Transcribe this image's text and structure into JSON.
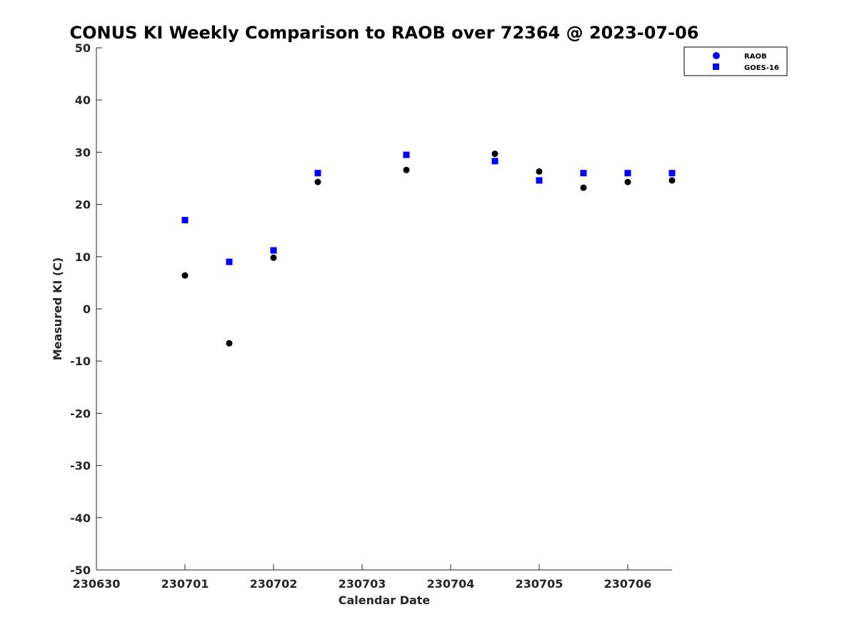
{
  "chart_data": {
    "type": "scatter",
    "title": "CONUS KI Weekly Comparison to RAOB over 72364 @ 2023-07-06",
    "xlabel": "Calendar Date",
    "ylabel": "Measured KI (C)",
    "xlim": [
      0,
      6.5
    ],
    "ylim": [
      -50,
      50
    ],
    "x_ticks": [
      0,
      1,
      2,
      3,
      4,
      5,
      6
    ],
    "x_tick_labels": [
      "230630",
      "230701",
      "230702",
      "230703",
      "230704",
      "230705",
      "230706"
    ],
    "y_ticks": [
      -50,
      -40,
      -30,
      -20,
      -10,
      0,
      10,
      20,
      30,
      40,
      50
    ],
    "y_tick_labels": [
      "-50",
      "-40",
      "-30",
      "-20",
      "-10",
      "0",
      "10",
      "20",
      "30",
      "40",
      "50"
    ],
    "legend_position": "top-right",
    "series": [
      {
        "name": "RAOB",
        "marker": "circle",
        "color": "#000000",
        "x": [
          1,
          1.5,
          2,
          2.5,
          3.5,
          4.5,
          5,
          5.5,
          6,
          6.5
        ],
        "y": [
          6.4,
          -6.6,
          9.8,
          24.3,
          26.6,
          29.7,
          26.3,
          23.2,
          24.3,
          24.6
        ]
      },
      {
        "name": "GOES-16",
        "marker": "square",
        "color": "#0000ff",
        "x": [
          1,
          1.5,
          2,
          2.5,
          3.5,
          4.5,
          5,
          5.5,
          6,
          6.5
        ],
        "y": [
          17.0,
          9.0,
          11.2,
          26.0,
          29.5,
          28.3,
          24.6,
          26.0,
          26.0,
          26.0
        ]
      }
    ]
  }
}
